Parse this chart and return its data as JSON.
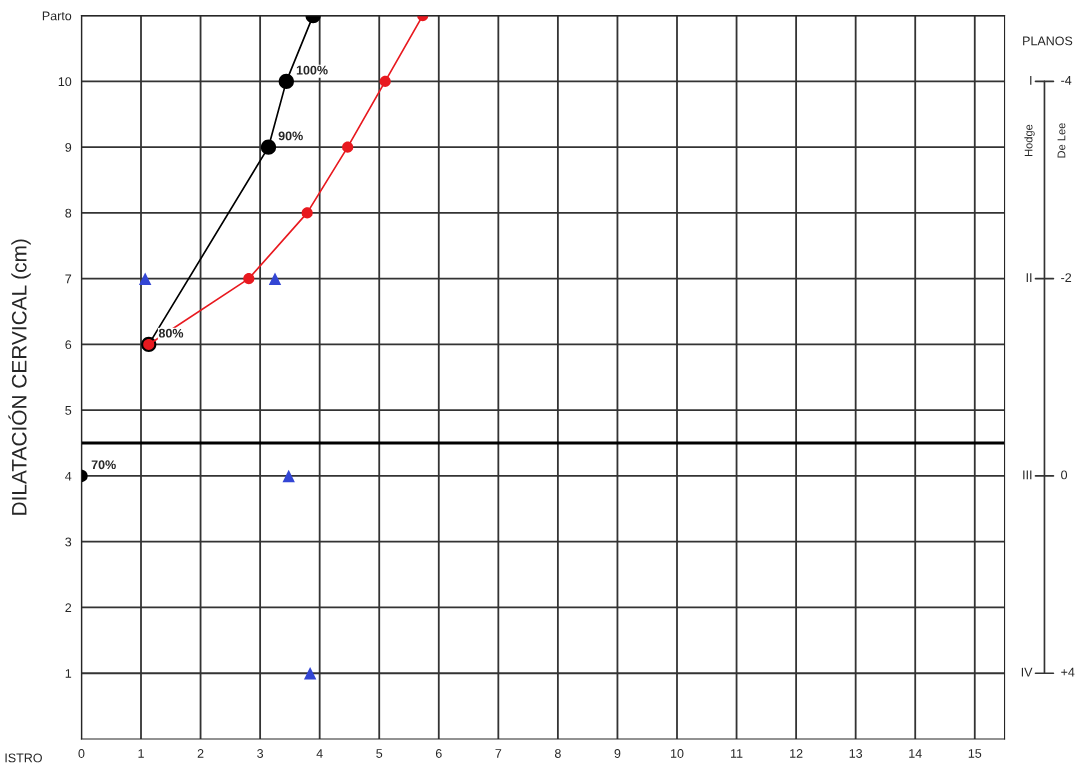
{
  "chart_data": [
    {
      "type": "line",
      "ylabel": "DILATACIÓN CERVICAL (cm)",
      "xlim": [
        0,
        15.5
      ],
      "xticks": [
        0,
        1,
        2,
        3,
        4,
        5,
        6,
        7,
        8,
        9,
        10,
        11,
        12,
        13,
        14,
        15
      ],
      "ylim": [
        0,
        11
      ],
      "yticks": [
        1,
        2,
        3,
        4,
        5,
        6,
        7,
        8,
        9,
        10,
        {
          "value": 11,
          "label": "Parto"
        }
      ],
      "grid": true,
      "marker": "circle",
      "series": [
        {
          "color": "#000000",
          "x": [
            1.13,
            3.14,
            3.44,
            3.89
          ],
          "values": [
            6,
            9,
            10,
            11
          ]
        },
        {
          "type": "scatter",
          "color": "#000000",
          "x": [
            0
          ],
          "values": [
            4
          ]
        },
        {
          "color": "#e8191f",
          "x": [
            1.13,
            2.81,
            3.79,
            4.47,
            5.1,
            5.73
          ],
          "values": [
            6,
            7,
            8,
            9,
            10,
            11
          ]
        },
        {
          "type": "scatter",
          "marker": "triangle",
          "color": "#3346d4",
          "x": [
            1.07,
            3.25,
            3.48,
            3.84
          ],
          "values": [
            7,
            7,
            4,
            1
          ]
        }
      ],
      "ref_lines": [
        {
          "axis": "y",
          "value": 4.5,
          "color": "#000000"
        }
      ],
      "annotations": [
        {
          "text": "70%",
          "x": 0,
          "y": 4
        },
        {
          "text": "80%",
          "x": 1.13,
          "y": 6
        },
        {
          "text": "90%",
          "x": 3.14,
          "y": 9
        },
        {
          "text": "100%",
          "x": 3.44,
          "y": 10
        },
        "ISTRO"
      ]
    },
    {
      "type": "other",
      "title": "PLANOS",
      "ylabel": "Hodge",
      "y2label": "De Lee",
      "annotations": [
        "I",
        "II",
        "III",
        "IV",
        "-4",
        "-2",
        "0",
        "+4"
      ]
    }
  ]
}
